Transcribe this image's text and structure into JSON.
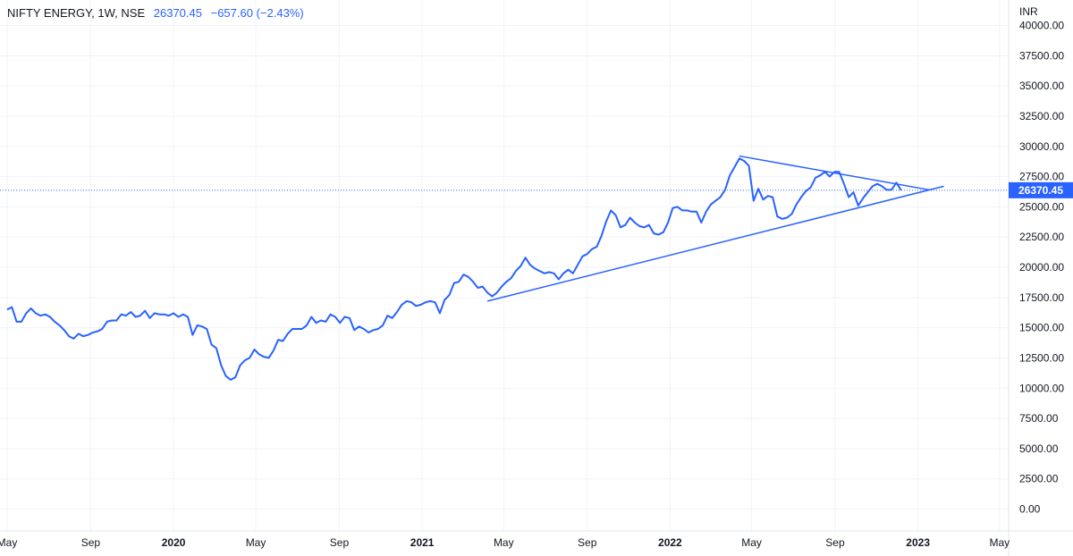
{
  "legend": {
    "symbol": "NIFTY ENERGY, 1W, NSE",
    "last_value": "26370.45",
    "change": "−657.60 (−2.43%)"
  },
  "currency": "INR",
  "colors": {
    "line": "#2962ff",
    "price_line": "#2962ff",
    "grid": "#f0f3fa",
    "axis_border": "#e0e3eb",
    "text": "#131722"
  },
  "chart_data": {
    "type": "line",
    "title": "NIFTY ENERGY, 1W, NSE",
    "ylabel": "INR",
    "ylim": [
      0,
      40000
    ],
    "y_ticks": [
      "0.00",
      "2500.00",
      "5000.00",
      "7500.00",
      "10000.00",
      "12500.00",
      "15000.00",
      "17500.00",
      "20000.00",
      "22500.00",
      "25000.00",
      "27500.00",
      "30000.00",
      "32500.00",
      "35000.00",
      "37500.00",
      "40000.00"
    ],
    "x_ticks": [
      {
        "label": "May",
        "date": "2019-05-01",
        "year": false
      },
      {
        "label": "Sep",
        "date": "2019-09-01",
        "year": false
      },
      {
        "label": "2020",
        "date": "2020-01-01",
        "year": true
      },
      {
        "label": "May",
        "date": "2020-05-01",
        "year": false
      },
      {
        "label": "Sep",
        "date": "2020-09-01",
        "year": false
      },
      {
        "label": "2021",
        "date": "2021-01-01",
        "year": true
      },
      {
        "label": "May",
        "date": "2021-05-01",
        "year": false
      },
      {
        "label": "Sep",
        "date": "2021-09-01",
        "year": false
      },
      {
        "label": "2022",
        "date": "2022-01-01",
        "year": true
      },
      {
        "label": "May",
        "date": "2022-05-01",
        "year": false
      },
      {
        "label": "Sep",
        "date": "2022-09-01",
        "year": false
      },
      {
        "label": "2023",
        "date": "2023-01-01",
        "year": true
      },
      {
        "label": "May",
        "date": "2023-05-01",
        "year": false
      }
    ],
    "xlim": [
      "2019-05-01",
      "2023-06-15"
    ],
    "last_value": 26370.45,
    "last_value_label": "26370.45",
    "series": [
      {
        "points": [
          [
            "2019-05-01",
            16500
          ],
          [
            "2019-05-08",
            16700
          ],
          [
            "2019-05-15",
            15500
          ],
          [
            "2019-05-22",
            15500
          ],
          [
            "2019-05-29",
            16200
          ],
          [
            "2019-06-05",
            16600
          ],
          [
            "2019-06-12",
            16200
          ],
          [
            "2019-06-19",
            16000
          ],
          [
            "2019-06-26",
            16100
          ],
          [
            "2019-07-03",
            15900
          ],
          [
            "2019-07-10",
            15500
          ],
          [
            "2019-07-17",
            15200
          ],
          [
            "2019-07-24",
            14800
          ],
          [
            "2019-07-31",
            14300
          ],
          [
            "2019-08-07",
            14100
          ],
          [
            "2019-08-14",
            14500
          ],
          [
            "2019-08-21",
            14300
          ],
          [
            "2019-08-28",
            14400
          ],
          [
            "2019-09-04",
            14600
          ],
          [
            "2019-09-11",
            14700
          ],
          [
            "2019-09-18",
            14900
          ],
          [
            "2019-09-25",
            15500
          ],
          [
            "2019-10-02",
            15600
          ],
          [
            "2019-10-09",
            15600
          ],
          [
            "2019-10-16",
            16100
          ],
          [
            "2019-10-23",
            16000
          ],
          [
            "2019-10-30",
            16300
          ],
          [
            "2019-11-06",
            15900
          ],
          [
            "2019-11-13",
            16000
          ],
          [
            "2019-11-20",
            16400
          ],
          [
            "2019-11-27",
            15800
          ],
          [
            "2019-12-04",
            16200
          ],
          [
            "2019-12-11",
            16100
          ],
          [
            "2019-12-18",
            16100
          ],
          [
            "2019-12-25",
            16000
          ],
          [
            "2020-01-01",
            16200
          ],
          [
            "2020-01-08",
            15900
          ],
          [
            "2020-01-15",
            16100
          ],
          [
            "2020-01-22",
            15900
          ],
          [
            "2020-01-29",
            14400
          ],
          [
            "2020-02-05",
            15200
          ],
          [
            "2020-02-12",
            15100
          ],
          [
            "2020-02-19",
            14900
          ],
          [
            "2020-02-26",
            13600
          ],
          [
            "2020-03-04",
            13300
          ],
          [
            "2020-03-11",
            11900
          ],
          [
            "2020-03-18",
            11000
          ],
          [
            "2020-03-25",
            10700
          ],
          [
            "2020-04-01",
            10900
          ],
          [
            "2020-04-08",
            11900
          ],
          [
            "2020-04-15",
            12300
          ],
          [
            "2020-04-22",
            12500
          ],
          [
            "2020-04-29",
            13200
          ],
          [
            "2020-05-06",
            12800
          ],
          [
            "2020-05-13",
            12600
          ],
          [
            "2020-05-20",
            12500
          ],
          [
            "2020-05-27",
            13100
          ],
          [
            "2020-06-03",
            14000
          ],
          [
            "2020-06-10",
            13900
          ],
          [
            "2020-06-17",
            14500
          ],
          [
            "2020-06-24",
            14900
          ],
          [
            "2020-07-01",
            14900
          ],
          [
            "2020-07-08",
            14900
          ],
          [
            "2020-07-15",
            15200
          ],
          [
            "2020-07-22",
            15900
          ],
          [
            "2020-07-29",
            15400
          ],
          [
            "2020-08-05",
            15600
          ],
          [
            "2020-08-12",
            15500
          ],
          [
            "2020-08-19",
            16100
          ],
          [
            "2020-08-26",
            15900
          ],
          [
            "2020-09-02",
            15400
          ],
          [
            "2020-09-09",
            15900
          ],
          [
            "2020-09-16",
            15800
          ],
          [
            "2020-09-23",
            14800
          ],
          [
            "2020-09-30",
            15100
          ],
          [
            "2020-10-07",
            14900
          ],
          [
            "2020-10-14",
            14600
          ],
          [
            "2020-10-21",
            14800
          ],
          [
            "2020-10-28",
            14900
          ],
          [
            "2020-11-04",
            15200
          ],
          [
            "2020-11-11",
            16000
          ],
          [
            "2020-11-18",
            15800
          ],
          [
            "2020-11-25",
            16300
          ],
          [
            "2020-12-02",
            16900
          ],
          [
            "2020-12-09",
            17200
          ],
          [
            "2020-12-16",
            17100
          ],
          [
            "2020-12-23",
            16800
          ],
          [
            "2020-12-30",
            16900
          ],
          [
            "2021-01-06",
            17100
          ],
          [
            "2021-01-13",
            17200
          ],
          [
            "2021-01-20",
            17100
          ],
          [
            "2021-01-27",
            16200
          ],
          [
            "2021-02-03",
            17300
          ],
          [
            "2021-02-10",
            17700
          ],
          [
            "2021-02-17",
            18700
          ],
          [
            "2021-02-24",
            18800
          ],
          [
            "2021-03-03",
            19400
          ],
          [
            "2021-03-10",
            19200
          ],
          [
            "2021-03-17",
            18800
          ],
          [
            "2021-03-24",
            18300
          ],
          [
            "2021-03-31",
            18400
          ],
          [
            "2021-04-07",
            17900
          ],
          [
            "2021-04-14",
            17600
          ],
          [
            "2021-04-21",
            17900
          ],
          [
            "2021-04-28",
            18400
          ],
          [
            "2021-05-05",
            18800
          ],
          [
            "2021-05-12",
            19100
          ],
          [
            "2021-05-19",
            19700
          ],
          [
            "2021-05-26",
            20100
          ],
          [
            "2021-06-02",
            20800
          ],
          [
            "2021-06-09",
            20200
          ],
          [
            "2021-06-16",
            19900
          ],
          [
            "2021-06-23",
            19700
          ],
          [
            "2021-06-30",
            19500
          ],
          [
            "2021-07-07",
            19600
          ],
          [
            "2021-07-14",
            19500
          ],
          [
            "2021-07-21",
            19000
          ],
          [
            "2021-07-28",
            19500
          ],
          [
            "2021-08-04",
            19800
          ],
          [
            "2021-08-11",
            19500
          ],
          [
            "2021-08-18",
            20200
          ],
          [
            "2021-08-25",
            20900
          ],
          [
            "2021-09-01",
            21100
          ],
          [
            "2021-09-08",
            21500
          ],
          [
            "2021-09-15",
            21700
          ],
          [
            "2021-09-22",
            22600
          ],
          [
            "2021-09-29",
            23800
          ],
          [
            "2021-10-06",
            24700
          ],
          [
            "2021-10-13",
            24300
          ],
          [
            "2021-10-20",
            23300
          ],
          [
            "2021-10-27",
            23500
          ],
          [
            "2021-11-03",
            24100
          ],
          [
            "2021-11-10",
            23700
          ],
          [
            "2021-11-17",
            23400
          ],
          [
            "2021-11-24",
            23300
          ],
          [
            "2021-12-01",
            23500
          ],
          [
            "2021-12-08",
            22800
          ],
          [
            "2021-12-15",
            22700
          ],
          [
            "2021-12-22",
            22900
          ],
          [
            "2021-12-29",
            23700
          ],
          [
            "2022-01-05",
            24900
          ],
          [
            "2022-01-12",
            25000
          ],
          [
            "2022-01-19",
            24700
          ],
          [
            "2022-01-26",
            24700
          ],
          [
            "2022-02-02",
            24600
          ],
          [
            "2022-02-09",
            24600
          ],
          [
            "2022-02-16",
            23700
          ],
          [
            "2022-02-23",
            24600
          ],
          [
            "2022-03-02",
            25200
          ],
          [
            "2022-03-09",
            25500
          ],
          [
            "2022-03-16",
            25800
          ],
          [
            "2022-03-23",
            26400
          ],
          [
            "2022-03-30",
            27600
          ],
          [
            "2022-04-06",
            28300
          ],
          [
            "2022-04-13",
            29000
          ],
          [
            "2022-04-20",
            28800
          ],
          [
            "2022-04-27",
            28400
          ],
          [
            "2022-05-04",
            25500
          ],
          [
            "2022-05-11",
            26500
          ],
          [
            "2022-05-18",
            25600
          ],
          [
            "2022-05-25",
            25900
          ],
          [
            "2022-06-01",
            25800
          ],
          [
            "2022-06-08",
            24200
          ],
          [
            "2022-06-15",
            24000
          ],
          [
            "2022-06-22",
            24100
          ],
          [
            "2022-06-29",
            24400
          ],
          [
            "2022-07-06",
            25200
          ],
          [
            "2022-07-13",
            25800
          ],
          [
            "2022-07-20",
            26300
          ],
          [
            "2022-07-27",
            26600
          ],
          [
            "2022-08-03",
            27400
          ],
          [
            "2022-08-10",
            27600
          ],
          [
            "2022-08-17",
            27900
          ],
          [
            "2022-08-24",
            27500
          ],
          [
            "2022-08-31",
            27900
          ],
          [
            "2022-09-07",
            27900
          ],
          [
            "2022-09-14",
            26900
          ],
          [
            "2022-09-21",
            25800
          ],
          [
            "2022-09-28",
            26200
          ],
          [
            "2022-10-05",
            25100
          ],
          [
            "2022-10-12",
            25700
          ],
          [
            "2022-10-19",
            26200
          ],
          [
            "2022-10-26",
            26700
          ],
          [
            "2022-11-02",
            26900
          ],
          [
            "2022-11-09",
            26700
          ],
          [
            "2022-11-16",
            26400
          ],
          [
            "2022-11-23",
            26400
          ],
          [
            "2022-11-30",
            27000
          ],
          [
            "2022-12-07",
            26370.45
          ]
        ]
      }
    ],
    "trendlines": [
      {
        "from": [
          "2021-04-07",
          17200
        ],
        "to": [
          "2023-02-08",
          26700
        ]
      },
      {
        "from": [
          "2022-04-13",
          29200
        ],
        "to": [
          "2023-01-18",
          26400
        ]
      }
    ]
  }
}
